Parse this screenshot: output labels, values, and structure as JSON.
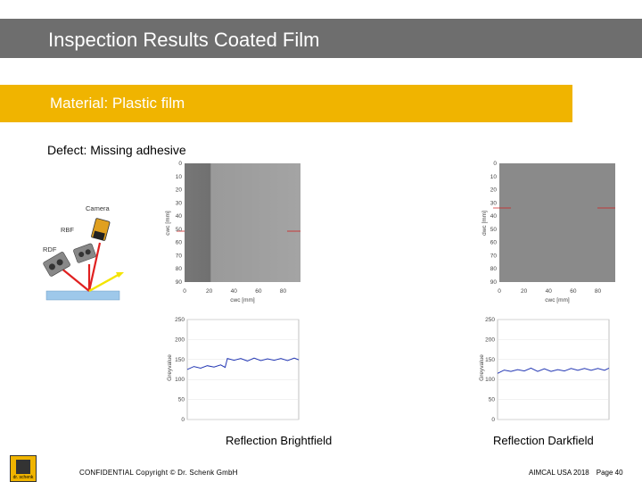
{
  "slide": {
    "title": "Inspection Results Coated Film",
    "material": "Material: Plastic film",
    "defect": "Defect: Missing adhesive"
  },
  "schematic": {
    "labels": {
      "camera": "Camera",
      "rbf": "RBF",
      "rdf": "RDF"
    },
    "colors": {
      "substrate": "#9ec8ea",
      "red_beam": "#e02020",
      "yellow_beam": "#f4e400",
      "camera_body": "#e0a020"
    }
  },
  "images": {
    "brightfield": {
      "ylabel": "cwc [mm]",
      "xlabel": "cwc [mm]",
      "yticks": [
        "0",
        "10",
        "20",
        "30",
        "40",
        "50",
        "60",
        "70",
        "80",
        "90"
      ],
      "xticks": [
        "0",
        "20",
        "40",
        "60",
        "80"
      ]
    },
    "darkfield": {
      "ylabel": "dwc [mm]",
      "xlabel": "cwc [mm]",
      "yticks": [
        "0",
        "10",
        "20",
        "30",
        "40",
        "50",
        "60",
        "70",
        "80",
        "90"
      ],
      "xticks": [
        "0",
        "20",
        "40",
        "60",
        "80"
      ]
    }
  },
  "chart_data": [
    {
      "type": "line",
      "title": "",
      "xlabel": "",
      "ylabel": "Greyvalue",
      "ylim": [
        0,
        250
      ],
      "yticks": [
        "0",
        "50",
        "100",
        "150",
        "200",
        "250"
      ],
      "x": [
        0,
        6,
        12,
        18,
        24,
        30,
        34,
        36,
        42,
        48,
        54,
        60,
        66,
        72,
        78,
        84,
        90,
        96,
        100
      ],
      "series": [
        {
          "values": [
            128,
            130,
            131,
            132,
            134,
            134,
            133,
            150,
            151,
            150,
            149,
            151,
            150,
            149,
            151,
            150,
            150,
            151,
            152
          ],
          "color": "#2438b4"
        }
      ]
    },
    {
      "type": "line",
      "title": "",
      "xlabel": "",
      "ylabel": "Greyvalue",
      "ylim": [
        0,
        250
      ],
      "yticks": [
        "0",
        "50",
        "100",
        "150",
        "200",
        "250"
      ],
      "x": [
        0,
        6,
        12,
        18,
        24,
        30,
        36,
        42,
        48,
        54,
        60,
        66,
        72,
        78,
        84,
        90,
        96,
        100
      ],
      "series": [
        {
          "values": [
            118,
            121,
            123,
            122,
            124,
            126,
            123,
            124,
            123,
            122,
            124,
            125,
            126,
            125,
            126,
            125,
            126,
            126
          ],
          "color": "#2438b4"
        }
      ]
    }
  ],
  "captions": {
    "brightfield": "Reflection Brightfield",
    "darkfield": "Reflection Darkfield"
  },
  "footer": {
    "left": "CONFIDENTIAL  Copyright © Dr. Schenk GmbH",
    "event": "AIMCAL USA 2018",
    "page": "Page 40"
  },
  "logo": {
    "text": "dr. schenk"
  }
}
